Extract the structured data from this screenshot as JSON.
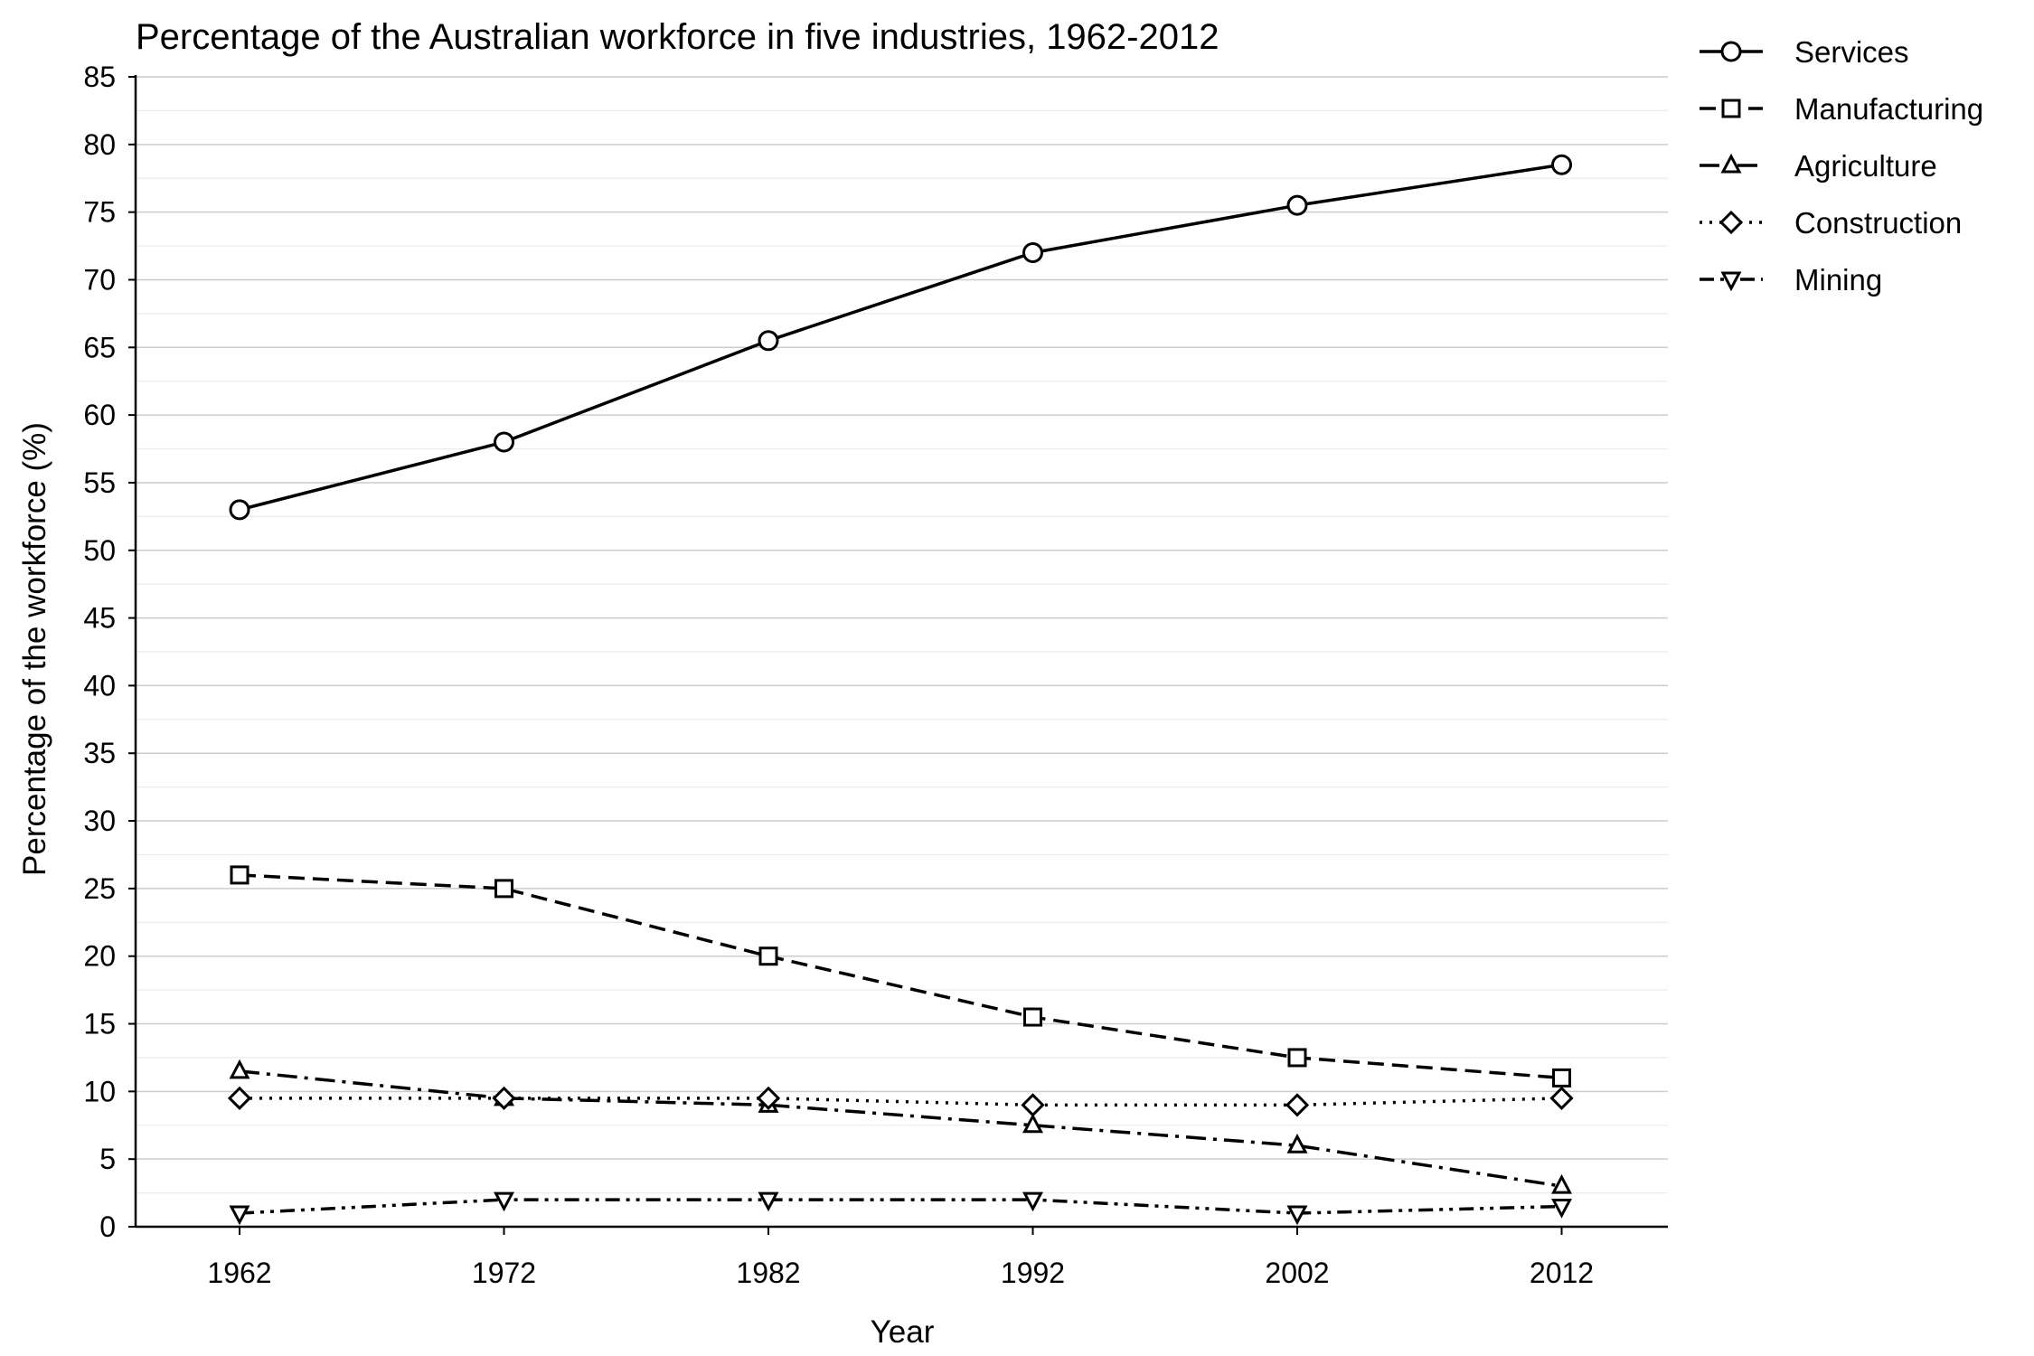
{
  "chart_data": {
    "type": "line",
    "title": "Percentage of the Australian workforce in five industries, 1962-2012",
    "xlabel": "Year",
    "ylabel": "Percentage of the workforce (%)",
    "categories": [
      "1962",
      "1972",
      "1982",
      "1992",
      "2002",
      "2012"
    ],
    "ylim": [
      0,
      85
    ],
    "yticks": [
      "0",
      "5",
      "10",
      "15",
      "20",
      "25",
      "30",
      "35",
      "40",
      "45",
      "50",
      "55",
      "60",
      "65",
      "70",
      "75",
      "80",
      "85"
    ],
    "grid": "horizontal, major every 5 and minor every 2.5",
    "legend_position": "outside top-right",
    "series": [
      {
        "name": "Services",
        "values": [
          53,
          58,
          65.5,
          72,
          75.5,
          78.5
        ],
        "marker": "circle",
        "dash": "solid"
      },
      {
        "name": "Manufacturing",
        "values": [
          26,
          25,
          20,
          15.5,
          12.5,
          11
        ],
        "marker": "square",
        "dash": "dashed"
      },
      {
        "name": "Agriculture",
        "values": [
          11.5,
          9.5,
          9,
          7.5,
          6,
          3
        ],
        "marker": "triangle-up",
        "dash": "dash-dot"
      },
      {
        "name": "Construction",
        "values": [
          9.5,
          9.5,
          9.5,
          9,
          9,
          9.5
        ],
        "marker": "diamond",
        "dash": "dotted"
      },
      {
        "name": "Mining",
        "values": [
          1,
          2,
          2,
          2,
          1,
          1.5
        ],
        "marker": "triangle-down",
        "dash": "dash-dot-dot"
      }
    ]
  }
}
